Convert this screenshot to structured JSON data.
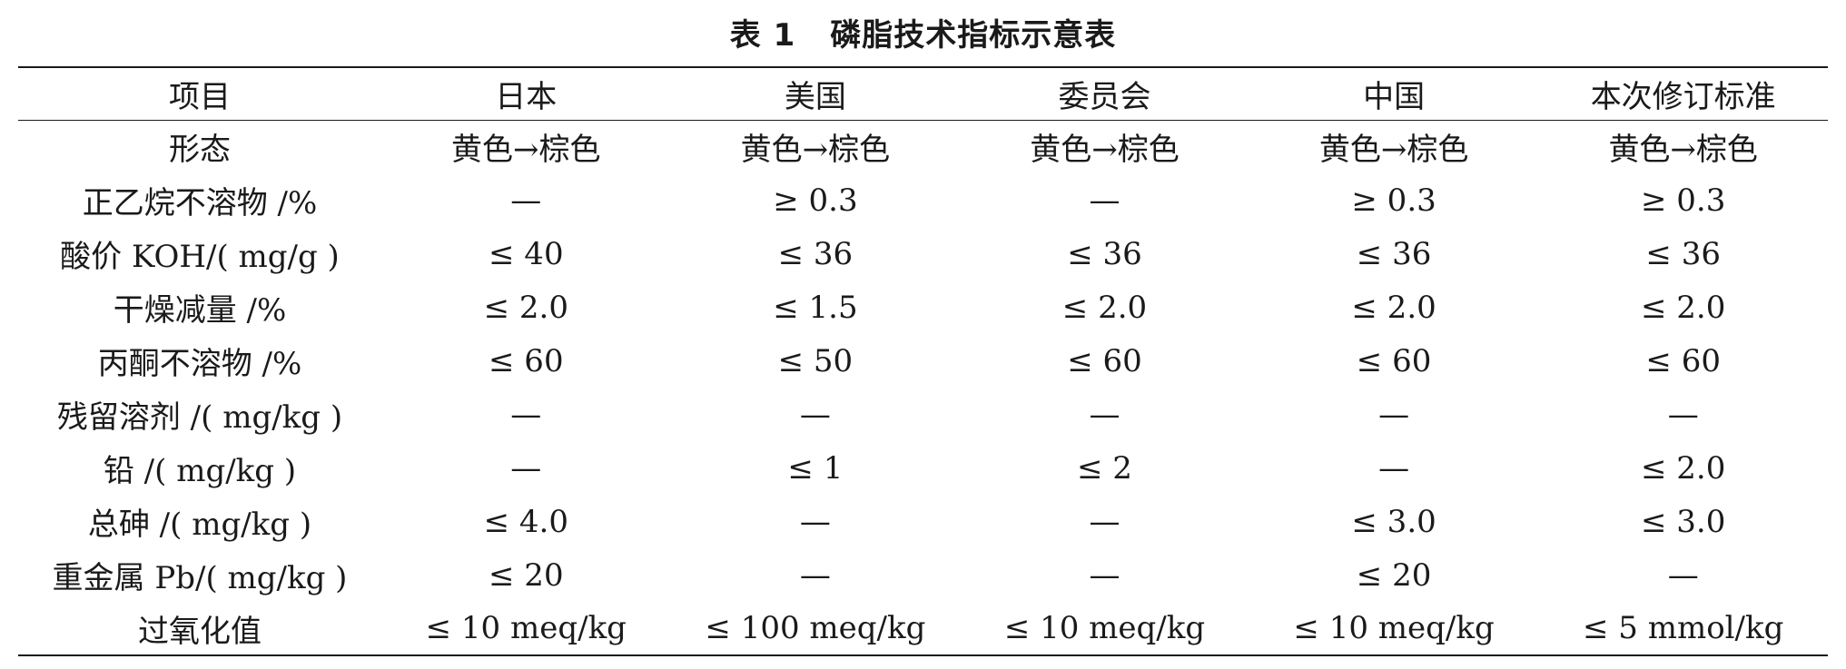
{
  "caption": {
    "number": "表 1",
    "title": "磷脂技术指标示意表"
  },
  "table": {
    "headers": [
      "项目",
      "日本",
      "美国",
      "委员会",
      "中国",
      "本次修订标准"
    ],
    "rows": [
      [
        "形态",
        "黄色→棕色",
        "黄色→棕色",
        "黄色→棕色",
        "黄色→棕色",
        "黄色→棕色"
      ],
      [
        "正乙烷不溶物 /%",
        "—",
        "≥ 0.3",
        "—",
        "≥ 0.3",
        "≥ 0.3"
      ],
      [
        "酸价 KOH/( mg/g )",
        "≤ 40",
        "≤ 36",
        "≤ 36",
        "≤ 36",
        "≤ 36"
      ],
      [
        "干燥减量 /%",
        "≤ 2.0",
        "≤ 1.5",
        "≤ 2.0",
        "≤ 2.0",
        "≤ 2.0"
      ],
      [
        "丙酮不溶物 /%",
        "≤ 60",
        "≤ 50",
        "≤ 60",
        "≤ 60",
        "≤ 60"
      ],
      [
        "残留溶剂 /( mg/kg )",
        "—",
        "—",
        "—",
        "—",
        "—"
      ],
      [
        "铅 /( mg/kg )",
        "—",
        "≤ 1",
        "≤ 2",
        "—",
        "≤ 2.0"
      ],
      [
        "总砷 /( mg/kg )",
        "≤ 4.0",
        "—",
        "—",
        "≤ 3.0",
        "≤ 3.0"
      ],
      [
        "重金属 Pb/( mg/kg )",
        "≤ 20",
        "—",
        "—",
        "≤ 20",
        "—"
      ],
      [
        "过氧化值",
        "≤ 10 meq/kg",
        "≤ 100 meq/kg",
        "≤ 10 meq/kg",
        "≤ 10 meq/kg",
        "≤ 5 mmol/kg"
      ]
    ]
  }
}
